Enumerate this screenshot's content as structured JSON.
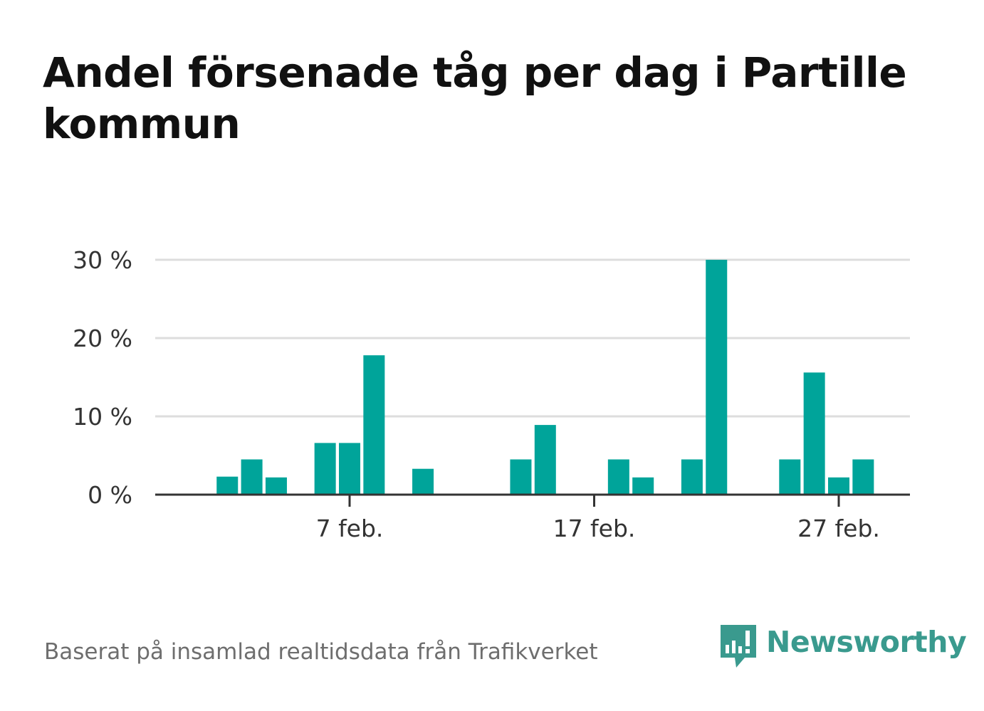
{
  "title": "Andel försenade tåg per dag i Partille kommun",
  "source": "Baserat på insamlad realtidsdata från Trafikverket",
  "brand": {
    "name": "Newsworthy",
    "logo_icon": "newsworthy-logo-icon",
    "color": "#3a9a8e"
  },
  "colors": {
    "bar": "#00a49a",
    "grid": "#dddddd",
    "axis": "#333333"
  },
  "chart_data": {
    "type": "bar",
    "title": "Andel försenade tåg per dag i Partille kommun",
    "xlabel": "",
    "ylabel": "",
    "ylim": [
      0,
      30
    ],
    "y_ticks": [
      0,
      10,
      20,
      30
    ],
    "y_tick_labels": [
      "0 %",
      "10 %",
      "20 %",
      "30 %"
    ],
    "x_ticks": [
      7,
      17,
      27
    ],
    "x_tick_labels": [
      "7 feb.",
      "17 feb.",
      "27 feb."
    ],
    "x_range": [
      0,
      31
    ],
    "grid": true,
    "days": [
      1,
      2,
      3,
      4,
      5,
      6,
      7,
      8,
      9,
      10,
      11,
      12,
      13,
      14,
      15,
      16,
      17,
      18,
      19,
      20,
      21,
      22,
      23,
      24,
      25,
      26,
      27,
      28
    ],
    "values": [
      0,
      2.3,
      4.5,
      2.2,
      0,
      6.6,
      6.6,
      17.8,
      0,
      3.3,
      0,
      0,
      0,
      4.5,
      8.9,
      0,
      0,
      4.5,
      2.2,
      0,
      4.5,
      30,
      0,
      0,
      4.5,
      15.6,
      2.2,
      4.5
    ]
  }
}
